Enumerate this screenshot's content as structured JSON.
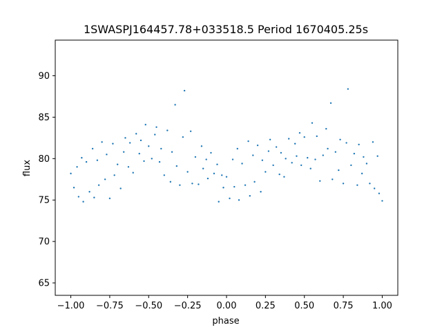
{
  "chart_data": {
    "type": "scatter",
    "title": "1SWASPJ164457.78+033518.5 Period 1670405.25s",
    "xlabel": "phase",
    "ylabel": "flux",
    "xlim": [
      -1.1,
      1.1
    ],
    "ylim": [
      63.5,
      94.3
    ],
    "xticks": [
      -1.0,
      -0.75,
      -0.5,
      -0.25,
      0.0,
      0.25,
      0.5,
      0.75,
      1.0
    ],
    "xtick_labels": [
      "−1.00",
      "−0.75",
      "−0.50",
      "−0.25",
      "0.00",
      "0.25",
      "0.50",
      "0.75",
      "1.00"
    ],
    "yticks": [
      65,
      70,
      75,
      80,
      85,
      90
    ],
    "ytick_labels": [
      "65",
      "70",
      "75",
      "80",
      "85",
      "90"
    ],
    "grid": false,
    "marker_color": "#1f77b4",
    "series": [
      {
        "x": [
          -1.0,
          -0.98,
          -0.96,
          -0.95,
          -0.93,
          -0.92,
          -0.9,
          -0.88,
          -0.86,
          -0.85,
          -0.83,
          -0.82,
          -0.8,
          -0.78,
          -0.77,
          -0.75,
          -0.73,
          -0.72,
          -0.7,
          -0.68,
          -0.66,
          -0.65,
          -0.63,
          -0.62,
          -0.6,
          -0.58,
          -0.56,
          -0.55,
          -0.53,
          -0.52,
          -0.5,
          -0.48,
          -0.46,
          -0.45,
          -0.43,
          -0.42,
          -0.4,
          -0.38,
          -0.36,
          -0.35,
          -0.33,
          -0.32,
          -0.3,
          -0.28,
          -0.27,
          -0.25,
          -0.23,
          -0.22,
          -0.2,
          -0.18,
          -0.16,
          -0.15,
          -0.13,
          -0.12,
          -0.1,
          -0.08,
          -0.06,
          -0.05,
          -0.03,
          -0.02,
          0.0,
          0.02,
          0.04,
          0.05,
          0.07,
          0.08,
          0.1,
          0.12,
          0.14,
          0.15,
          0.17,
          0.18,
          0.2,
          0.22,
          0.23,
          0.25,
          0.27,
          0.28,
          0.3,
          0.32,
          0.34,
          0.35,
          0.37,
          0.38,
          0.4,
          0.42,
          0.44,
          0.45,
          0.47,
          0.48,
          0.5,
          0.52,
          0.54,
          0.55,
          0.57,
          0.58,
          0.6,
          0.62,
          0.64,
          0.65,
          0.67,
          0.68,
          0.7,
          0.72,
          0.73,
          0.75,
          0.77,
          0.78,
          0.8,
          0.82,
          0.84,
          0.85,
          0.87,
          0.88,
          0.9,
          0.92,
          0.94,
          0.95,
          0.97,
          0.98,
          1.0
        ],
        "y": [
          78.2,
          76.5,
          79.0,
          75.4,
          80.1,
          74.8,
          79.6,
          76.0,
          81.2,
          75.3,
          79.8,
          76.8,
          82.0,
          77.5,
          80.5,
          75.2,
          81.8,
          78.0,
          79.3,
          76.4,
          80.8,
          82.5,
          79.0,
          81.9,
          78.3,
          83.0,
          80.6,
          82.2,
          79.7,
          84.1,
          81.5,
          80.0,
          82.9,
          83.8,
          79.6,
          81.2,
          78.0,
          83.4,
          77.2,
          80.8,
          86.5,
          79.1,
          76.8,
          82.6,
          88.2,
          78.4,
          83.3,
          77.0,
          80.2,
          76.9,
          81.5,
          78.8,
          79.9,
          77.6,
          80.7,
          78.2,
          79.3,
          74.8,
          78.0,
          76.5,
          77.8,
          75.2,
          79.9,
          76.6,
          81.2,
          75.0,
          79.4,
          76.8,
          82.1,
          75.5,
          80.4,
          77.2,
          81.6,
          76.0,
          79.8,
          78.4,
          80.9,
          82.3,
          79.2,
          81.4,
          78.1,
          80.7,
          77.8,
          80.0,
          82.4,
          79.5,
          81.8,
          80.3,
          83.1,
          79.2,
          82.6,
          80.1,
          78.8,
          84.3,
          79.9,
          82.7,
          77.3,
          80.4,
          83.6,
          81.2,
          86.7,
          77.5,
          80.8,
          78.6,
          82.3,
          77.0,
          81.9,
          88.4,
          79.2,
          80.6,
          76.8,
          81.7,
          78.2,
          80.2,
          79.4,
          77.0,
          82.0,
          76.4,
          80.3,
          75.8,
          74.9
        ]
      }
    ]
  }
}
